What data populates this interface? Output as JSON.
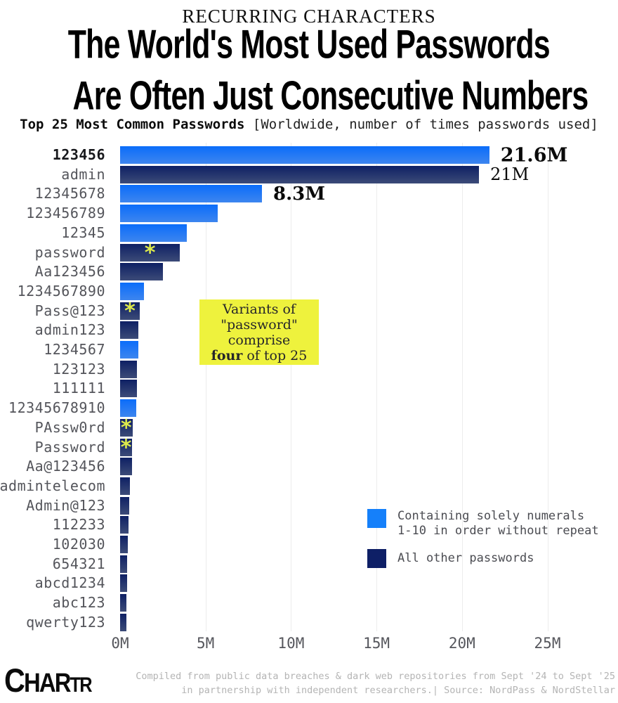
{
  "header": {
    "eyebrow": "RECURRING CHARACTERS",
    "title_lines": [
      "The World's Most Used Passwords",
      "Are Often Just Consecutive Numbers"
    ],
    "subtitle_bold": "Top 25 Most Common Passwords",
    "subtitle_note": "[Worldwide, number of times passwords used]"
  },
  "chart_data": {
    "type": "bar",
    "orientation": "horizontal",
    "title": "Top 25 Most Common Passwords",
    "unit": "millions of times used",
    "xlim": [
      0,
      25
    ],
    "grid": "vertical-faint",
    "x_ticks": [
      {
        "label": "0M",
        "value": 0
      },
      {
        "label": "5M",
        "value": 5
      },
      {
        "label": "10M",
        "value": 10
      },
      {
        "label": "15M",
        "value": 15
      },
      {
        "label": "20M",
        "value": 20
      },
      {
        "label": "25M",
        "value": 25
      }
    ],
    "rows": [
      {
        "label": "123456",
        "value": 21.6,
        "group": "numeric",
        "value_label": "21.6M",
        "value_label_bold": true,
        "emphasis": true
      },
      {
        "label": "admin",
        "value": 21.0,
        "group": "other",
        "value_label": "21M",
        "value_label_bold": false
      },
      {
        "label": "12345678",
        "value": 8.3,
        "group": "numeric",
        "value_label": "8.3M",
        "value_label_bold": true
      },
      {
        "label": "123456789",
        "value": 5.7,
        "group": "numeric"
      },
      {
        "label": "12345",
        "value": 3.9,
        "group": "numeric"
      },
      {
        "label": "password",
        "value": 3.5,
        "group": "other",
        "asterisk": true
      },
      {
        "label": "Aa123456",
        "value": 2.5,
        "group": "other"
      },
      {
        "label": "1234567890",
        "value": 1.4,
        "group": "numeric"
      },
      {
        "label": "Pass@123",
        "value": 1.15,
        "group": "other",
        "asterisk": true
      },
      {
        "label": "admin123",
        "value": 1.05,
        "group": "other"
      },
      {
        "label": "1234567",
        "value": 1.05,
        "group": "numeric"
      },
      {
        "label": "123123",
        "value": 1.0,
        "group": "other"
      },
      {
        "label": "111111",
        "value": 1.0,
        "group": "other"
      },
      {
        "label": "12345678910",
        "value": 0.95,
        "group": "numeric"
      },
      {
        "label": "PAssw0rd",
        "value": 0.72,
        "group": "other",
        "asterisk": true
      },
      {
        "label": "Password",
        "value": 0.7,
        "group": "other",
        "asterisk": true
      },
      {
        "label": "Aa@123456",
        "value": 0.68,
        "group": "other"
      },
      {
        "label": "admintelecom",
        "value": 0.56,
        "group": "other"
      },
      {
        "label": "Admin@123",
        "value": 0.52,
        "group": "other"
      },
      {
        "label": "112233",
        "value": 0.49,
        "group": "other"
      },
      {
        "label": "102030",
        "value": 0.45,
        "group": "other"
      },
      {
        "label": "654321",
        "value": 0.42,
        "group": "other"
      },
      {
        "label": "abcd1234",
        "value": 0.41,
        "group": "other"
      },
      {
        "label": "abc123",
        "value": 0.39,
        "group": "other"
      },
      {
        "label": "qwerty123",
        "value": 0.38,
        "group": "other"
      }
    ],
    "legend_position": "right-middle"
  },
  "annotation": {
    "marker": "*",
    "lines": [
      "Variants of",
      "\"password\"",
      "comprise"
    ],
    "final_line": {
      "bold": "four",
      "rest": " of top 25"
    }
  },
  "legend": {
    "items": [
      {
        "swatch": "numeric",
        "label_lines": [
          "Containing solely numerals",
          "1-10 in order without repeat"
        ]
      },
      {
        "swatch": "other",
        "label_lines": [
          "All other passwords"
        ]
      }
    ]
  },
  "colors": {
    "numeric": "#1580fa",
    "numeric_grad_top": "#0b6dfa",
    "numeric_grad_bottom": "#3d85ef",
    "other": "#0e1f66",
    "other_grad_top": "#0e2064",
    "other_grad_bottom": "#3c4b78",
    "annotation_bg": "#eef23d",
    "asterisk": "#dde94c"
  },
  "footer": {
    "logo_parts": [
      "C",
      "HAR",
      "TR"
    ],
    "source_lines": [
      "Compiled from public data breaches & dark web repositories from Sept '24 to Sept '25",
      "in partnership with independent researchers.| Source: NordPass & NordStellar"
    ]
  }
}
